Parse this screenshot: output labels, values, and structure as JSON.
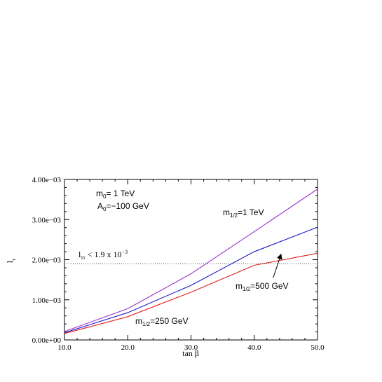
{
  "chart_data": {
    "type": "line",
    "xlabel_main": "tan",
    "xlabel_symbol": "β",
    "ylabel_main": "l",
    "ylabel_sub": "τ",
    "xlim": [
      10,
      50
    ],
    "ylim": [
      0,
      0.004
    ],
    "xticks": [
      10,
      20,
      30,
      40,
      50
    ],
    "xtick_labels": [
      "10.0",
      "20.0",
      "30.0",
      "40.0",
      "50.0"
    ],
    "yticks": [
      0,
      0.001,
      0.002,
      0.003,
      0.004
    ],
    "ytick_labels": [
      "0.00e+00",
      "1.00e−03",
      "2.00e−03",
      "3.00e−03",
      "4.00e−03"
    ],
    "x": [
      10,
      20,
      30,
      40,
      50
    ],
    "series": [
      {
        "id": "s1tev",
        "color": "#9b30c8",
        "values": [
          0.00021,
          0.00078,
          0.00165,
          0.0027,
          0.00376
        ]
      },
      {
        "id": "s500",
        "color": "#1a1acc",
        "values": [
          0.00018,
          0.00068,
          0.00136,
          0.0022,
          0.00281
        ]
      },
      {
        "id": "s250",
        "color": "#e02020",
        "values": [
          0.00016,
          0.00058,
          0.00119,
          0.00186,
          0.00216
        ]
      }
    ],
    "reference_line": {
      "y": 0.0019,
      "style": "dotted",
      "color": "#555555"
    },
    "annotations": {
      "m0_main": "m",
      "m0_sub": "0",
      "m0_rest": "= 1 TeV",
      "a0_main": "A",
      "a0_sub": "0",
      "a0_rest": "=−100 GeV",
      "m12_main": "m",
      "m12_sub": "1/2",
      "m12_1tev_rest": "=1 TeV",
      "m12_500_rest": "=500 GeV",
      "m12_250_rest": "=250 GeV",
      "bound_main": "l",
      "bound_sub": "ττ",
      "bound_rest": " < 1.9 x 10",
      "bound_exp": "−3"
    },
    "arrow": {
      "from": [
        43.0,
        0.00155
      ],
      "to": [
        44.2,
        0.00212
      ]
    }
  }
}
